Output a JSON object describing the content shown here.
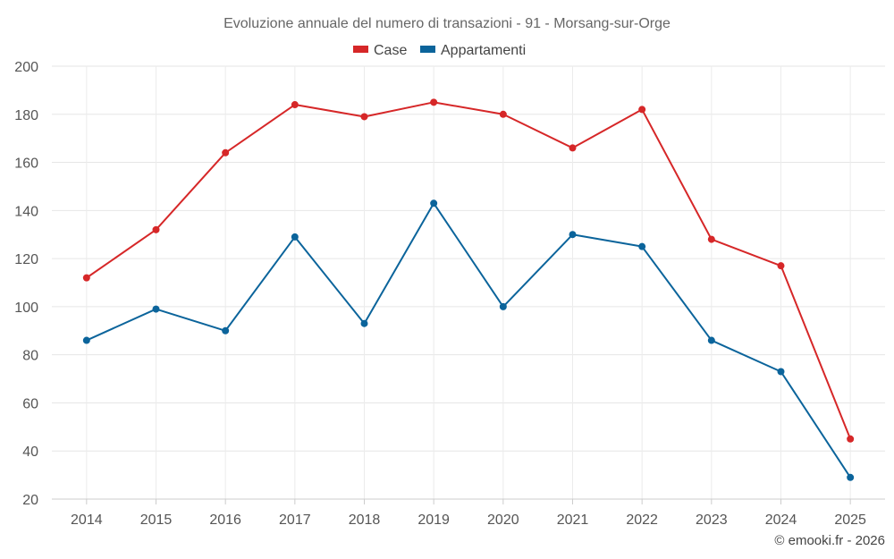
{
  "chart_data": {
    "type": "line",
    "title": "Evoluzione annuale del numero di transazioni - 91 - Morsang-sur-Orge",
    "categories": [
      "2014",
      "2015",
      "2016",
      "2017",
      "2018",
      "2019",
      "2020",
      "2021",
      "2022",
      "2023",
      "2024",
      "2025"
    ],
    "series": [
      {
        "name": "Case",
        "color": "#d62728",
        "values": [
          112,
          132,
          164,
          184,
          179,
          185,
          180,
          166,
          182,
          128,
          117,
          45
        ]
      },
      {
        "name": "Appartamenti",
        "color": "#0b649b",
        "values": [
          86,
          99,
          90,
          129,
          93,
          143,
          100,
          130,
          125,
          86,
          73,
          29
        ]
      }
    ],
    "ylim": [
      20,
      200
    ],
    "yticks": [
      "20",
      "40",
      "60",
      "80",
      "100",
      "120",
      "140",
      "160",
      "180",
      "200"
    ],
    "grid": true,
    "legend": "top-center",
    "xlabel": "",
    "ylabel": ""
  },
  "credit": "© emooki.fr - 2026"
}
